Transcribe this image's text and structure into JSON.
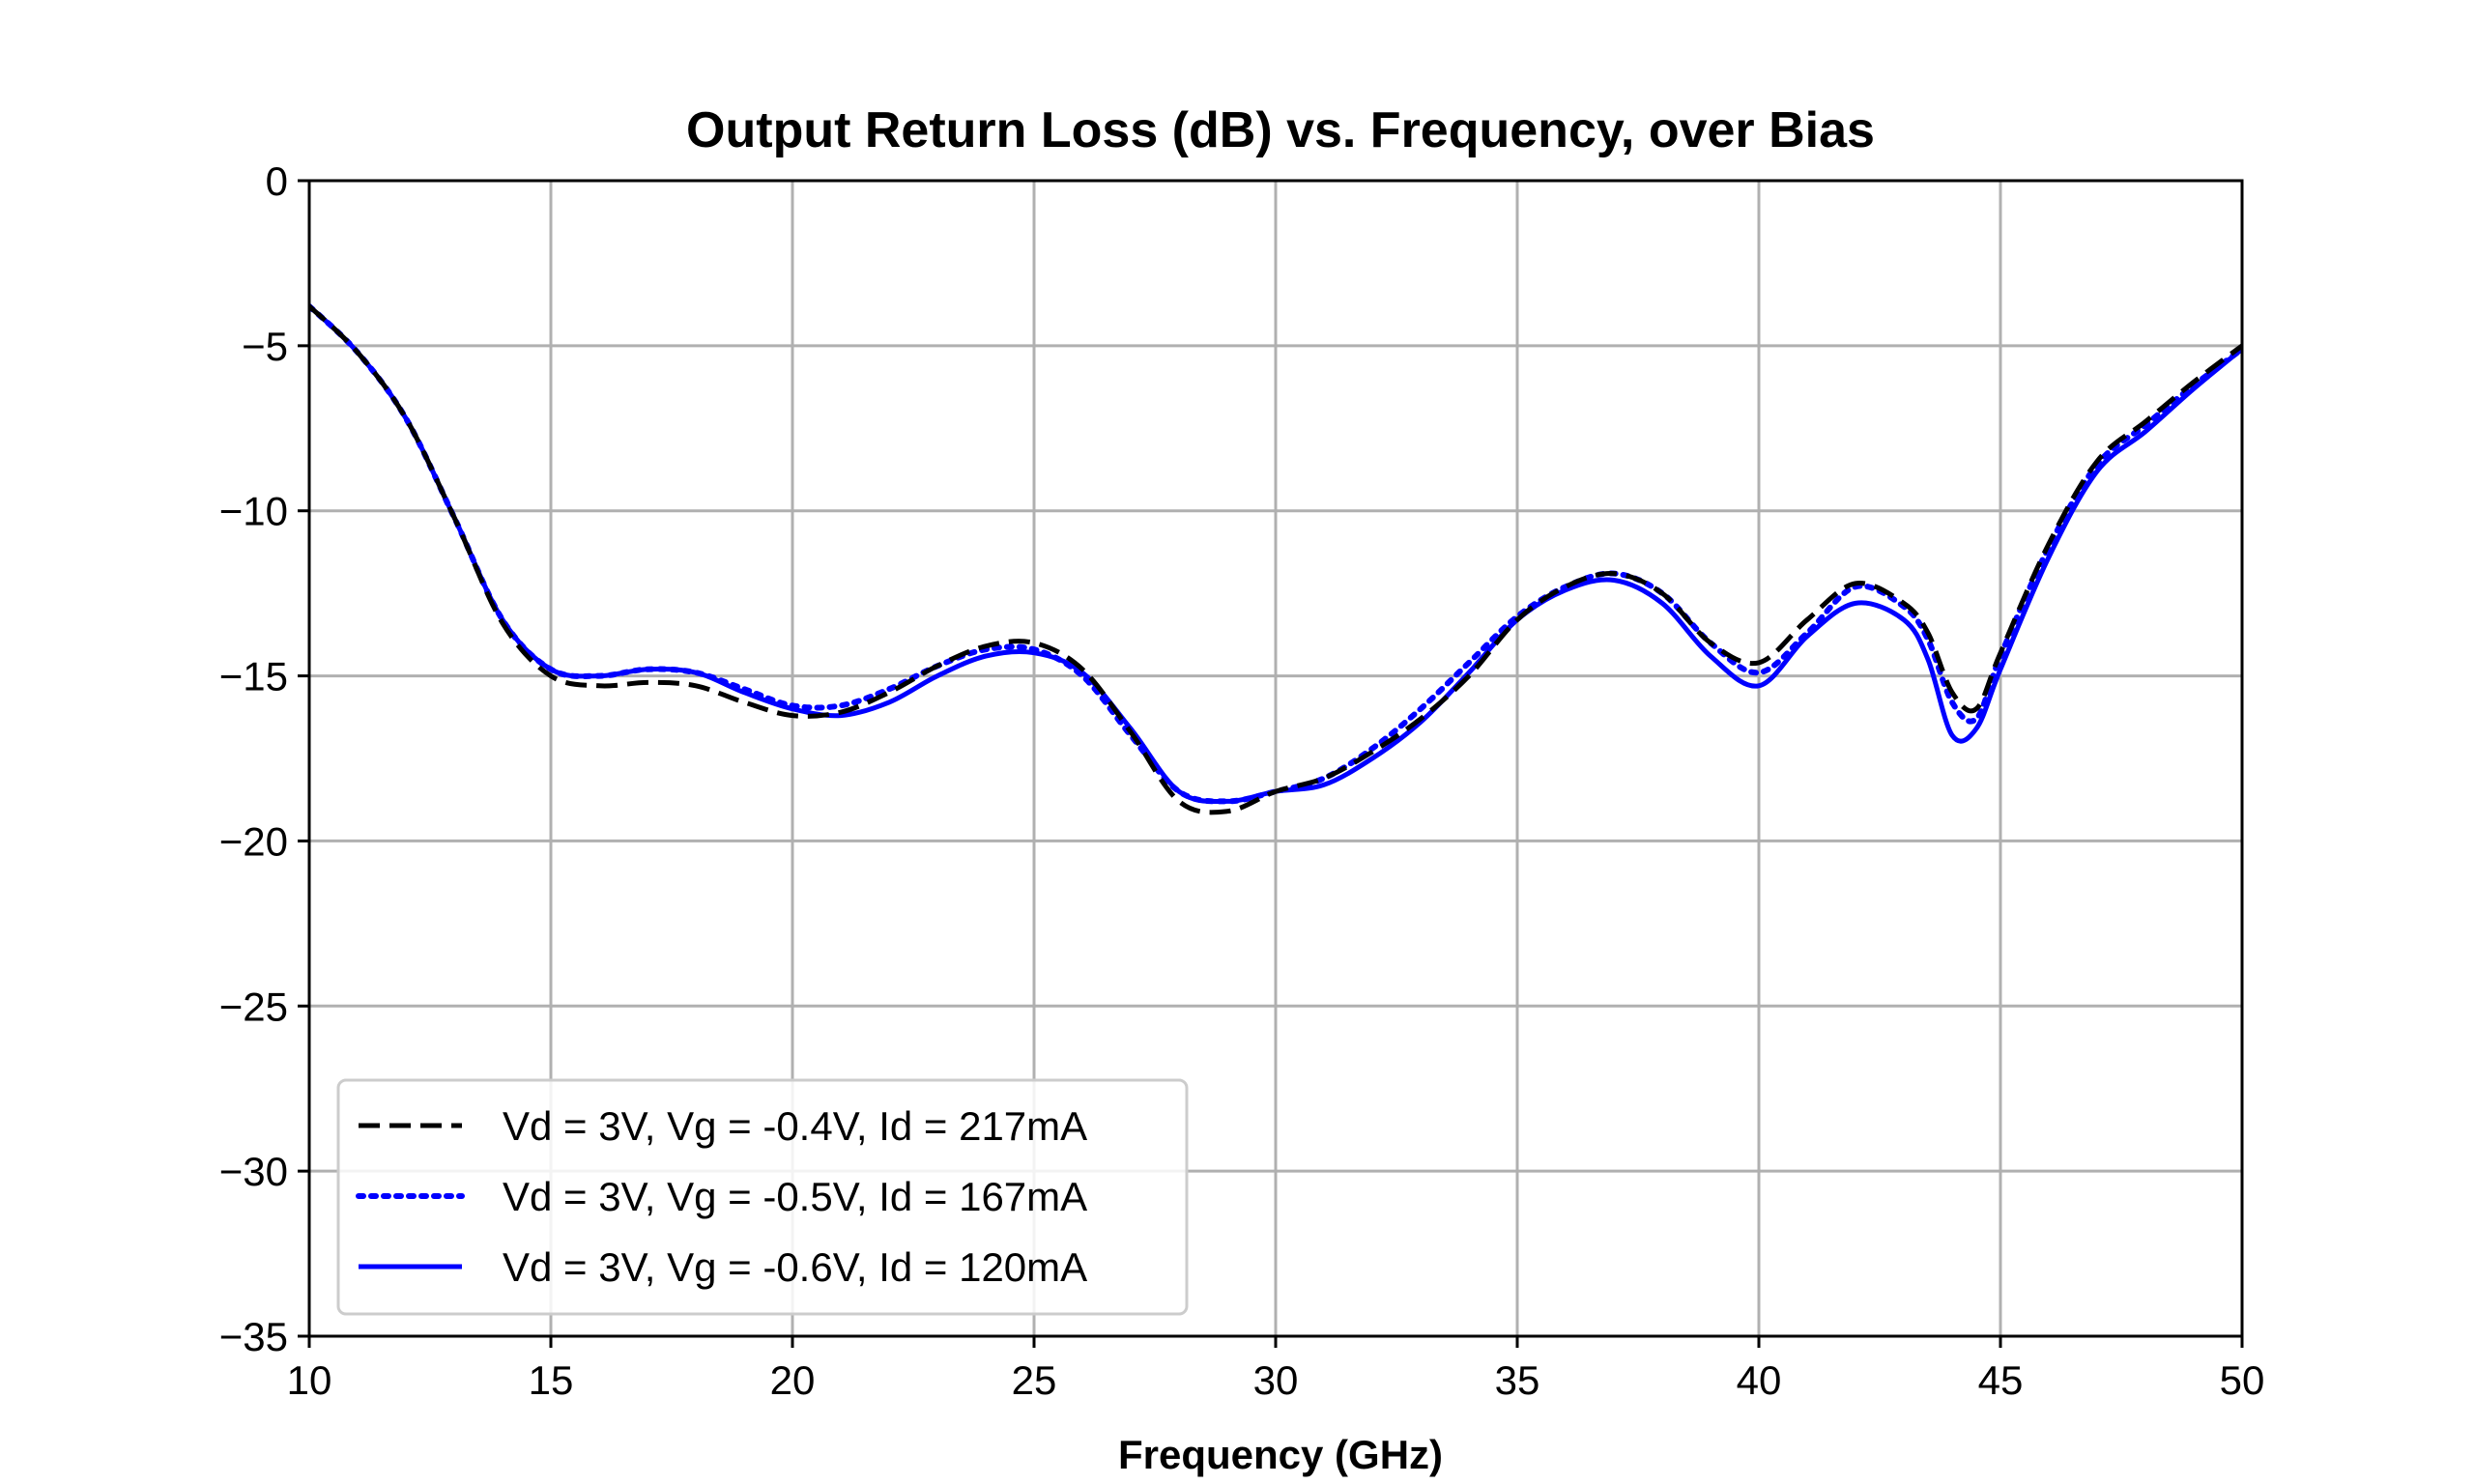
{
  "chart_data": {
    "type": "line",
    "title": "Output Return Loss (dB) vs. Frequency, over Bias",
    "xlabel": "Frequency (GHz)",
    "ylabel": "",
    "xlim": [
      10,
      50
    ],
    "ylim": [
      -35,
      0
    ],
    "xticks": [
      10,
      15,
      20,
      25,
      30,
      35,
      40,
      45,
      50
    ],
    "yticks": [
      0,
      -5,
      -10,
      -15,
      -20,
      -25,
      -30,
      -35
    ],
    "xtick_labels": [
      "10",
      "15",
      "20",
      "25",
      "30",
      "35",
      "40",
      "45",
      "50"
    ],
    "ytick_labels": [
      "0",
      "−5",
      "−10",
      "−15",
      "−20",
      "−25",
      "−30",
      "−35"
    ],
    "grid": true,
    "legend_position": "lower-left",
    "series": [
      {
        "name": "Vd = 3V, Vg = -0.4V, Id = 217mA",
        "color": "#000000",
        "style": "dashed",
        "x": [
          10,
          11,
          12,
          13,
          14,
          15,
          16,
          17,
          18,
          19,
          20,
          21,
          22,
          23,
          24,
          25,
          26,
          27,
          28,
          29,
          30,
          31,
          32,
          33,
          34,
          35,
          36,
          37,
          38,
          39,
          40,
          41,
          42,
          43,
          43.5,
          44,
          44.5,
          45,
          46,
          47,
          48,
          49,
          50
        ],
        "y": [
          -3.8,
          -5.2,
          -7.2,
          -10.2,
          -13.4,
          -15.0,
          -15.3,
          -15.2,
          -15.3,
          -15.8,
          -16.2,
          -16.1,
          -15.5,
          -14.7,
          -14.1,
          -14.0,
          -14.8,
          -16.7,
          -18.8,
          -19.1,
          -18.5,
          -18.1,
          -17.3,
          -16.3,
          -15.0,
          -13.3,
          -12.3,
          -11.9,
          -12.5,
          -14.0,
          -14.6,
          -13.3,
          -12.2,
          -12.8,
          -13.7,
          -15.5,
          -16.0,
          -14.3,
          -11.0,
          -8.5,
          -7.3,
          -6.1,
          -5.0
        ]
      },
      {
        "name": "Vd = 3V, Vg = -0.5V, Id = 167mA",
        "color": "#0000ff",
        "style": "dotted",
        "x": [
          10,
          11,
          12,
          13,
          14,
          15,
          16,
          17,
          18,
          19,
          20,
          21,
          22,
          23,
          24,
          25,
          26,
          27,
          28,
          29,
          30,
          31,
          32,
          33,
          34,
          35,
          36,
          37,
          38,
          39,
          40,
          41,
          42,
          43,
          43.5,
          44,
          44.5,
          45,
          46,
          47,
          48,
          49,
          50
        ],
        "y": [
          -3.8,
          -5.2,
          -7.2,
          -10.2,
          -13.3,
          -14.8,
          -15.0,
          -14.8,
          -14.9,
          -15.4,
          -15.9,
          -15.9,
          -15.4,
          -14.7,
          -14.2,
          -14.2,
          -15.0,
          -16.8,
          -18.5,
          -18.8,
          -18.5,
          -18.1,
          -17.2,
          -16.0,
          -14.6,
          -13.2,
          -12.3,
          -11.9,
          -12.5,
          -14.0,
          -14.9,
          -13.7,
          -12.3,
          -12.9,
          -13.9,
          -15.8,
          -16.3,
          -14.4,
          -11.1,
          -8.6,
          -7.4,
          -6.2,
          -5.1
        ]
      },
      {
        "name": "Vd = 3V, Vg = -0.6V, Id = 120mA",
        "color": "#0000ff",
        "style": "solid",
        "x": [
          10,
          11,
          12,
          13,
          14,
          15,
          16,
          17,
          18,
          19,
          20,
          21,
          22,
          23,
          24,
          25,
          26,
          27,
          28,
          29,
          30,
          31,
          32,
          33,
          34,
          35,
          36,
          37,
          38,
          39,
          40,
          41,
          42,
          43,
          43.5,
          44,
          44.5,
          45,
          46,
          47,
          48,
          49,
          50
        ],
        "y": [
          -3.8,
          -5.2,
          -7.2,
          -10.2,
          -13.3,
          -14.8,
          -15.0,
          -14.8,
          -14.9,
          -15.5,
          -16.0,
          -16.2,
          -15.8,
          -15.0,
          -14.4,
          -14.3,
          -14.9,
          -16.6,
          -18.5,
          -18.8,
          -18.5,
          -18.3,
          -17.5,
          -16.4,
          -14.9,
          -13.3,
          -12.4,
          -12.1,
          -12.8,
          -14.4,
          -15.3,
          -13.8,
          -12.8,
          -13.3,
          -14.5,
          -16.8,
          -16.6,
          -14.8,
          -11.4,
          -8.8,
          -7.6,
          -6.3,
          -5.1
        ]
      }
    ]
  }
}
